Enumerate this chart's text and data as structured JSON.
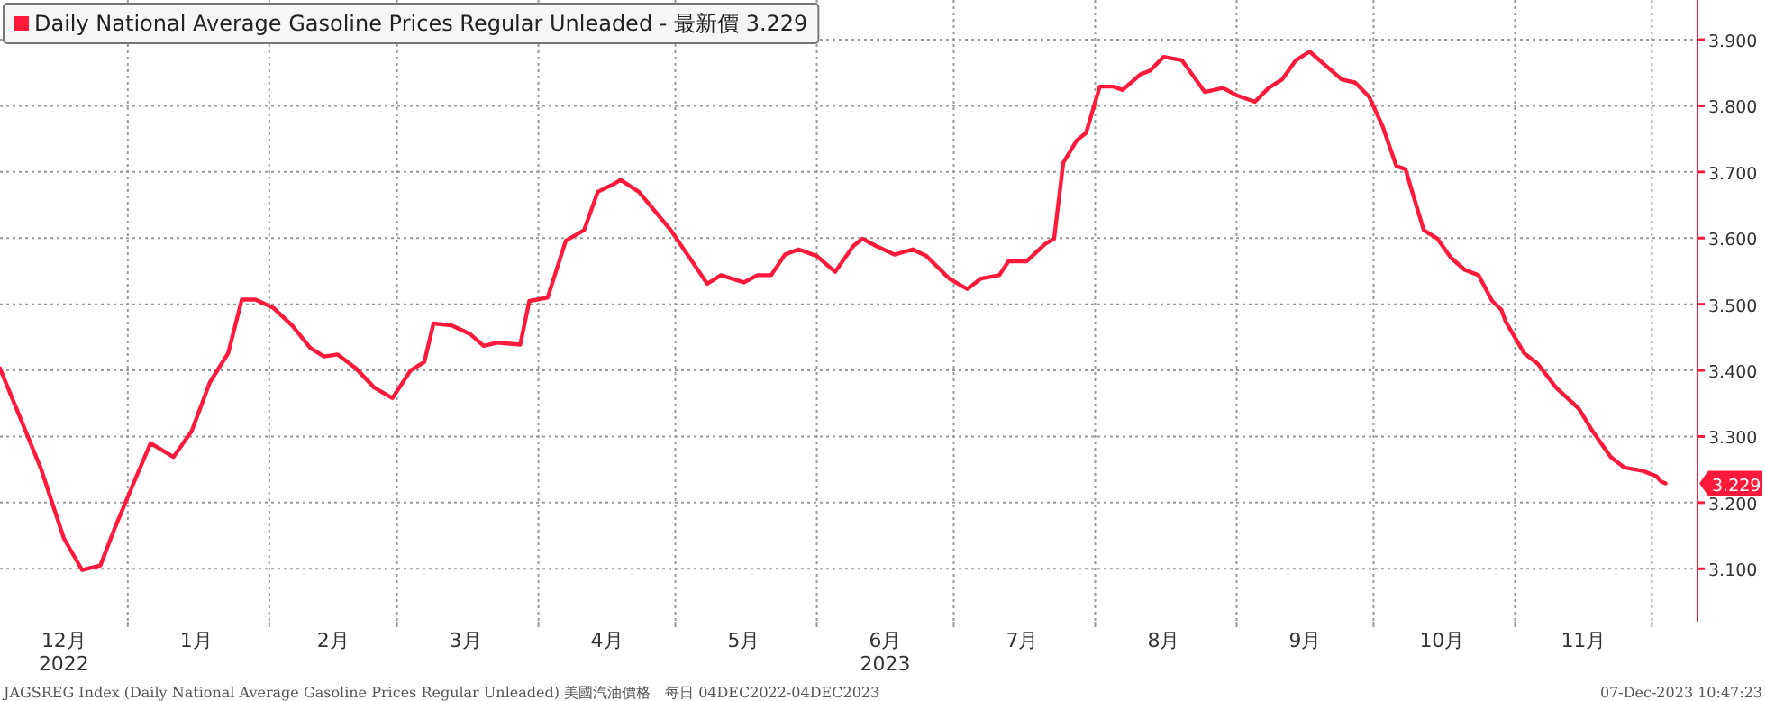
{
  "chart_data": {
    "type": "line",
    "legend": "top left",
    "grid": true,
    "line_style": "solid",
    "xlim": [
      "2022-12-04",
      "2023-12-11"
    ],
    "xticks": [
      {
        "value": "2023-01-01",
        "label": null
      },
      {
        "value": "2023-02-01",
        "label": null
      },
      {
        "value": "2023-03-01",
        "label": null
      },
      {
        "value": "2023-04-01",
        "label": null
      },
      {
        "value": "2023-05-01",
        "label": null
      },
      {
        "value": "2023-06-01",
        "label": null
      },
      {
        "value": "2023-07-01",
        "label": null
      },
      {
        "value": "2023-08-01",
        "label": null
      },
      {
        "value": "2023-09-01",
        "label": null
      },
      {
        "value": "2023-10-01",
        "label": null
      },
      {
        "value": "2023-11-01",
        "label": null
      },
      {
        "value": "2023-12-01",
        "label": null
      },
      {
        "value": "2022-12-18",
        "label": "12月\n2022"
      },
      {
        "value": "2023-01-16",
        "label": "1月"
      },
      {
        "value": "2023-02-15",
        "label": "2月"
      },
      {
        "value": "2023-03-16",
        "label": "3月"
      },
      {
        "value": "2023-04-16",
        "label": "4月"
      },
      {
        "value": "2023-05-16",
        "label": "5月"
      },
      {
        "value": "2023-06-16",
        "label": "6月\n2023"
      },
      {
        "value": "2023-07-16",
        "label": "7月"
      },
      {
        "value": "2023-08-16",
        "label": "8月"
      },
      {
        "value": "2023-09-16",
        "label": "9月"
      },
      {
        "value": "2023-10-16",
        "label": "10月"
      },
      {
        "value": "2023-11-16",
        "label": "11月"
      }
    ],
    "ylim": [
      3.02,
      3.96
    ],
    "yticks": [
      {
        "value": 3.1,
        "label": "3.100"
      },
      {
        "value": 3.2,
        "label": "3.200"
      },
      {
        "value": 3.3,
        "label": "3.300"
      },
      {
        "value": 3.4,
        "label": "3.400"
      },
      {
        "value": 3.5,
        "label": "3.500"
      },
      {
        "value": 3.6,
        "label": "3.600"
      },
      {
        "value": 3.7,
        "label": "3.700"
      },
      {
        "value": 3.8,
        "label": "3.800"
      },
      {
        "value": 3.9,
        "label": "3.900"
      }
    ],
    "annotations": [
      {
        "text": "3.229",
        "x": "2023-12-04",
        "y": 3.229
      },
      "JAGSREG Index (Daily National Average Gasoline Prices Regular Unleaded) 美國汽油價格　每日 04DEC2022-04DEC2023",
      "07-Dec-2023 10:47:23"
    ],
    "series": [
      {
        "name": "Daily National Average Gasoline Prices Regular Unleaded - 最新價 3.229",
        "color": "#ff1a3c",
        "x": [
          "2022-12-04",
          "2022-12-13",
          "2022-12-18",
          "2022-12-22",
          "2022-12-26",
          "2022-12-29",
          "2023-01-02",
          "2023-01-06",
          "2023-01-11",
          "2023-01-15",
          "2023-01-19",
          "2023-01-23",
          "2023-01-26",
          "2023-01-29",
          "2023-02-02",
          "2023-02-06",
          "2023-02-10",
          "2023-02-13",
          "2023-02-16",
          "2023-02-20",
          "2023-02-24",
          "2023-02-28",
          "2023-03-04",
          "2023-03-07",
          "2023-03-09",
          "2023-03-13",
          "2023-03-17",
          "2023-03-20",
          "2023-03-23",
          "2023-03-28",
          "2023-03-30",
          "2023-04-03",
          "2023-04-07",
          "2023-04-11",
          "2023-04-14",
          "2023-04-17",
          "2023-04-19",
          "2023-04-23",
          "2023-04-30",
          "2023-05-08",
          "2023-05-11",
          "2023-05-16",
          "2023-05-19",
          "2023-05-22",
          "2023-05-25",
          "2023-05-28",
          "2023-06-01",
          "2023-06-05",
          "2023-06-09",
          "2023-06-11",
          "2023-06-14",
          "2023-06-18",
          "2023-06-22",
          "2023-06-25",
          "2023-06-30",
          "2023-07-04",
          "2023-07-07",
          "2023-07-11",
          "2023-07-13",
          "2023-07-17",
          "2023-07-21",
          "2023-07-23",
          "2023-07-25",
          "2023-07-28",
          "2023-07-30",
          "2023-08-02",
          "2023-08-05",
          "2023-08-07",
          "2023-08-11",
          "2023-08-13",
          "2023-08-16",
          "2023-08-20",
          "2023-08-25",
          "2023-08-29",
          "2023-09-01",
          "2023-09-05",
          "2023-09-08",
          "2023-09-11",
          "2023-09-14",
          "2023-09-17",
          "2023-09-21",
          "2023-09-24",
          "2023-09-27",
          "2023-09-30",
          "2023-10-03",
          "2023-10-06",
          "2023-10-08",
          "2023-10-12",
          "2023-10-15",
          "2023-10-18",
          "2023-10-21",
          "2023-10-24",
          "2023-10-27",
          "2023-10-29",
          "2023-10-30",
          "2023-11-03",
          "2023-11-06",
          "2023-11-10",
          "2023-11-15",
          "2023-11-18",
          "2023-11-22",
          "2023-11-25",
          "2023-11-29",
          "2023-12-02",
          "2023-12-03",
          "2023-12-04"
        ],
        "values": [
          3.403,
          3.251,
          3.146,
          3.098,
          3.105,
          3.159,
          3.225,
          3.29,
          3.269,
          3.308,
          3.382,
          3.426,
          3.507,
          3.507,
          3.494,
          3.468,
          3.434,
          3.421,
          3.424,
          3.403,
          3.374,
          3.358,
          3.4,
          3.413,
          3.471,
          3.468,
          3.455,
          3.437,
          3.442,
          3.439,
          3.505,
          3.51,
          3.596,
          3.612,
          3.67,
          3.68,
          3.688,
          3.67,
          3.612,
          3.531,
          3.544,
          3.533,
          3.544,
          3.544,
          3.575,
          3.583,
          3.573,
          3.549,
          3.588,
          3.599,
          3.588,
          3.575,
          3.583,
          3.573,
          3.539,
          3.523,
          3.539,
          3.544,
          3.565,
          3.565,
          3.591,
          3.599,
          3.714,
          3.748,
          3.759,
          3.829,
          3.829,
          3.824,
          3.848,
          3.853,
          3.874,
          3.869,
          3.821,
          3.827,
          3.816,
          3.806,
          3.827,
          3.84,
          3.869,
          3.882,
          3.858,
          3.84,
          3.835,
          3.814,
          3.769,
          3.709,
          3.704,
          3.612,
          3.599,
          3.57,
          3.552,
          3.544,
          3.505,
          3.492,
          3.473,
          3.426,
          3.41,
          3.374,
          3.342,
          3.308,
          3.269,
          3.253,
          3.248,
          3.24,
          3.232,
          3.229
        ]
      }
    ]
  }
}
